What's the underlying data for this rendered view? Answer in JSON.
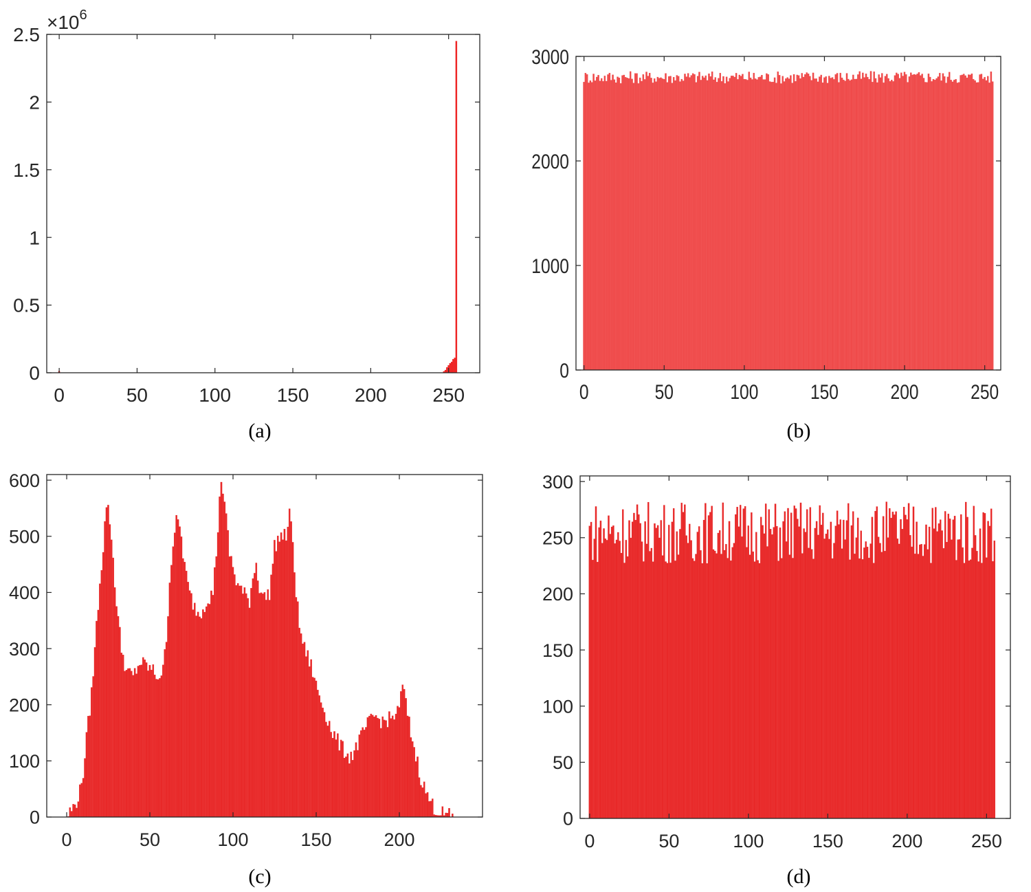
{
  "chart_data": [
    {
      "id": "a",
      "type": "bar",
      "caption": "(a)",
      "title": "",
      "xlabel": "",
      "ylabel": "",
      "exponent": "×10^6",
      "scale": 1000000,
      "xlim": [
        -8,
        270
      ],
      "ylim": [
        0,
        2.5
      ],
      "xticks": [
        0,
        50,
        100,
        150,
        200,
        250
      ],
      "yticks": [
        0,
        0.5,
        1,
        1.5,
        2,
        2.5
      ],
      "ytick_labels": [
        "0",
        "0.5",
        "1",
        "1.5",
        "2",
        "2.5"
      ],
      "bar_color": "#ee2222",
      "bars": [
        [
          0,
          0.012
        ],
        [
          247,
          0.01
        ],
        [
          248,
          0.02
        ],
        [
          249,
          0.04
        ],
        [
          250,
          0.055
        ],
        [
          251,
          0.07
        ],
        [
          252,
          0.08
        ],
        [
          253,
          0.1
        ],
        [
          254,
          0.11
        ],
        [
          255,
          2.45
        ]
      ],
      "grid": false
    },
    {
      "id": "b",
      "type": "bar",
      "caption": "(b)",
      "title": "",
      "xlabel": "",
      "ylabel": "",
      "xlim": [
        -5,
        260
      ],
      "ylim": [
        0,
        3000
      ],
      "xticks": [
        0,
        50,
        100,
        150,
        200,
        250
      ],
      "yticks": [
        0,
        1000,
        2000,
        3000
      ],
      "ytick_labels": [
        "0",
        "1000",
        "2000",
        "3000"
      ],
      "bar_color": "#ef4a4a",
      "levels": [
        [
          0,
          2800
        ],
        [
          255,
          2800
        ]
      ],
      "jitter": 60,
      "grid": false
    },
    {
      "id": "c",
      "type": "bar",
      "caption": "(c)",
      "title": "",
      "xlabel": "",
      "ylabel": "",
      "xlim": [
        -12,
        250
      ],
      "ylim": [
        0,
        610
      ],
      "xticks": [
        0,
        50,
        100,
        150,
        200
      ],
      "yticks": [
        0,
        100,
        200,
        300,
        400,
        500,
        600
      ],
      "ytick_labels": [
        "0",
        "100",
        "200",
        "300",
        "400",
        "500",
        "600"
      ],
      "bar_color": "#e82828",
      "levels": [
        [
          0,
          0
        ],
        [
          2,
          10
        ],
        [
          5,
          20
        ],
        [
          8,
          45
        ],
        [
          10,
          80
        ],
        [
          12,
          140
        ],
        [
          15,
          220
        ],
        [
          18,
          340
        ],
        [
          20,
          420
        ],
        [
          22,
          480
        ],
        [
          24,
          560
        ],
        [
          26,
          530
        ],
        [
          28,
          460
        ],
        [
          30,
          380
        ],
        [
          33,
          300
        ],
        [
          36,
          260
        ],
        [
          40,
          250
        ],
        [
          44,
          275
        ],
        [
          48,
          270
        ],
        [
          52,
          260
        ],
        [
          55,
          250
        ],
        [
          58,
          260
        ],
        [
          60,
          320
        ],
        [
          62,
          420
        ],
        [
          64,
          490
        ],
        [
          66,
          525
        ],
        [
          68,
          520
        ],
        [
          70,
          470
        ],
        [
          73,
          410
        ],
        [
          76,
          380
        ],
        [
          80,
          360
        ],
        [
          84,
          385
        ],
        [
          88,
          400
        ],
        [
          90,
          470
        ],
        [
          92,
          560
        ],
        [
          93,
          605
        ],
        [
          95,
          560
        ],
        [
          98,
          470
        ],
        [
          102,
          420
        ],
        [
          106,
          400
        ],
        [
          110,
          385
        ],
        [
          112,
          430
        ],
        [
          114,
          450
        ],
        [
          116,
          410
        ],
        [
          119,
          390
        ],
        [
          122,
          400
        ],
        [
          125,
          480
        ],
        [
          128,
          500
        ],
        [
          132,
          500
        ],
        [
          134,
          540
        ],
        [
          136,
          490
        ],
        [
          138,
          400
        ],
        [
          140,
          340
        ],
        [
          143,
          300
        ],
        [
          147,
          270
        ],
        [
          150,
          235
        ],
        [
          155,
          190
        ],
        [
          160,
          150
        ],
        [
          165,
          125
        ],
        [
          170,
          108
        ],
        [
          172,
          112
        ],
        [
          175,
          130
        ],
        [
          180,
          160
        ],
        [
          185,
          180
        ],
        [
          190,
          170
        ],
        [
          195,
          175
        ],
        [
          200,
          190
        ],
        [
          202,
          240
        ],
        [
          204,
          200
        ],
        [
          207,
          150
        ],
        [
          210,
          110
        ],
        [
          213,
          70
        ],
        [
          216,
          45
        ],
        [
          219,
          25
        ],
        [
          222,
          14
        ],
        [
          226,
          6
        ],
        [
          230,
          2
        ],
        [
          235,
          0
        ]
      ],
      "jitter": 14,
      "grid": false
    },
    {
      "id": "d",
      "type": "bar",
      "caption": "(d)",
      "title": "",
      "xlabel": "",
      "ylabel": "",
      "xlim": [
        -6,
        265
      ],
      "ylim": [
        0,
        305
      ],
      "xticks": [
        0,
        50,
        100,
        150,
        200,
        250
      ],
      "yticks": [
        0,
        50,
        100,
        150,
        200,
        250,
        300
      ],
      "ytick_labels": [
        "0",
        "50",
        "100",
        "150",
        "200",
        "250",
        "300"
      ],
      "bar_color": "#e82828",
      "levels": [
        [
          0,
          255
        ],
        [
          255,
          255
        ]
      ],
      "jitter": 28,
      "grid": false
    }
  ]
}
